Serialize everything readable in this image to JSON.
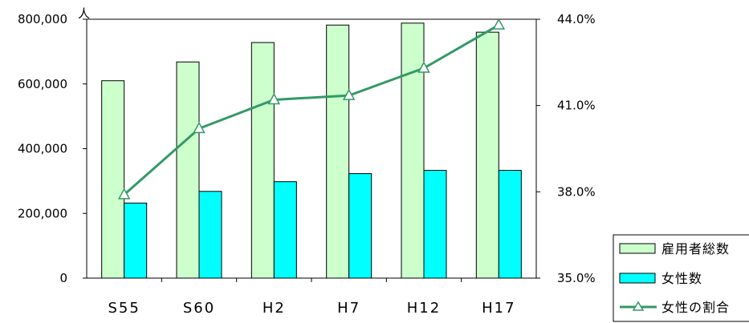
{
  "chart_data": {
    "type": "bar",
    "categories": [
      "S55",
      "S60",
      "H2",
      "H7",
      "H12",
      "H17"
    ],
    "series": [
      {
        "name": "雇用者総数",
        "kind": "bar",
        "axis": "left",
        "color": "#ccffcc",
        "values": [
          610000,
          668000,
          728000,
          782000,
          788000,
          760000
        ]
      },
      {
        "name": "女性数",
        "kind": "bar",
        "axis": "left",
        "color": "#00ffff",
        "values": [
          232000,
          268000,
          298000,
          323000,
          333000,
          333000
        ]
      },
      {
        "name": "女性の割合",
        "kind": "line",
        "axis": "right",
        "color": "#339966",
        "values": [
          37.9,
          40.2,
          41.2,
          41.35,
          42.3,
          43.8
        ]
      }
    ],
    "y_left": {
      "ticks": [
        "800,000",
        "600,000",
        "400,000",
        "200,000",
        "0"
      ],
      "min": 0,
      "max": 800000,
      "unit": "人"
    },
    "y_right": {
      "ticks": [
        "44.0%",
        "41.0%",
        "38.0%",
        "35.0%"
      ],
      "min": 35.0,
      "max": 44.0
    },
    "legend_position": "bottom-right",
    "grid": false
  }
}
